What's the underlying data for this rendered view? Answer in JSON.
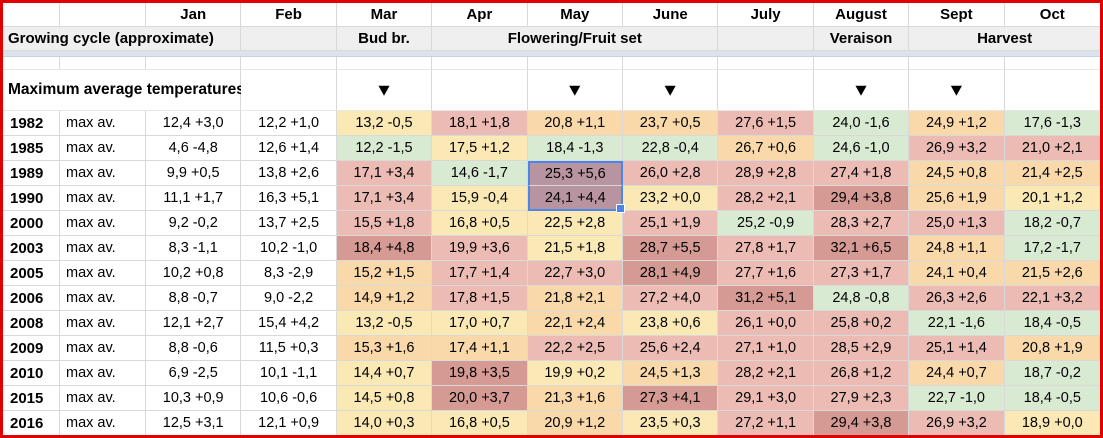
{
  "frame": {
    "border_color": "#e00000"
  },
  "months": [
    "Jan",
    "Feb",
    "Mar",
    "Apr",
    "May",
    "June",
    "July",
    "August",
    "Sept",
    "Oct"
  ],
  "growing_cycle": {
    "cells": [
      {
        "label": "Growing cycle (approximate)",
        "span": 3,
        "align": "left",
        "name": "growing-cycle-label"
      },
      {
        "label": "",
        "span": 1,
        "name": "cycle-feb-empty"
      },
      {
        "label": "Bud br.",
        "span": 1,
        "name": "stage-bud-break"
      },
      {
        "label": "Flowering/Fruit set",
        "span": 3,
        "name": "stage-flowering-fruit-set"
      },
      {
        "label": "",
        "span": 1,
        "name": "cycle-july-empty"
      },
      {
        "label": "Veraison",
        "span": 1,
        "name": "stage-veraison"
      },
      {
        "label": "Harvest",
        "span": 2,
        "name": "stage-harvest"
      }
    ]
  },
  "section_title": "Maximum average temperatures",
  "markers": {
    "glyph": "▼",
    "columns": [
      "Mar",
      "May",
      "June",
      "August",
      "Sept"
    ]
  },
  "palette": {
    "header_gray": "#efefef",
    "green": "#d9ead3",
    "yellow": "#fbe9b5",
    "orange": "#f9d9a9",
    "pink": "#ecbcb4",
    "dark_red": "#d49a93",
    "selection_blue": "#4a86e8"
  },
  "selection": {
    "column": "May",
    "rows": [
      "1989",
      "1990"
    ]
  },
  "rows": [
    {
      "year": "1982",
      "label": "max av.",
      "values": [
        "12,4 +3,0",
        "12,2 +1,0",
        "13,2 -0,5",
        "18,1 +1,8",
        "20,8 +1,1",
        "23,7 +0,5",
        "27,6 +1,5",
        "24,0 -1,6",
        "24,9 +1,2",
        "17,6 -1,3"
      ],
      "colors": [
        "w",
        "w",
        "y",
        "p",
        "o",
        "o",
        "p",
        "g",
        "o",
        "g"
      ]
    },
    {
      "year": "1985",
      "label": "max av.",
      "values": [
        "4,6 -4,8",
        "12,6 +1,4",
        "12,2 -1,5",
        "17,5 +1,2",
        "18,4 -1,3",
        "22,8 -0,4",
        "26,7 +0,6",
        "24,6 -1,0",
        "26,9 +3,2",
        "21,0 +2,1"
      ],
      "colors": [
        "w",
        "w",
        "g",
        "y",
        "g",
        "g",
        "o",
        "g",
        "p",
        "p"
      ]
    },
    {
      "year": "1989",
      "label": "max av.",
      "values": [
        "9,9 +0,5",
        "13,8 +2,6",
        "17,1 +3,4",
        "14,6 -1,7",
        "25,3 +5,6",
        "26,0 +2,8",
        "28,9 +2,8",
        "27,4 +1,8",
        "24,5 +0,8",
        "21,4 +2,5"
      ],
      "colors": [
        "w",
        "w",
        "p",
        "g",
        "r",
        "p",
        "p",
        "p",
        "o",
        "o"
      ]
    },
    {
      "year": "1990",
      "label": "max av.",
      "values": [
        "11,1 +1,7",
        "16,3 +5,1",
        "17,1 +3,4",
        "15,9 -0,4",
        "24,1 +4,4",
        "23,2 +0,0",
        "28,2 +2,1",
        "29,4 +3,8",
        "25,6 +1,9",
        "20,1 +1,2"
      ],
      "colors": [
        "w",
        "w",
        "p",
        "y",
        "r",
        "y",
        "p",
        "r",
        "o",
        "y"
      ]
    },
    {
      "year": "2000",
      "label": "max av.",
      "values": [
        "9,2 -0,2",
        "13,7 +2,5",
        "15,5 +1,8",
        "16,8 +0,5",
        "22,5 +2,8",
        "25,1 +1,9",
        "25,2 -0,9",
        "28,3 +2,7",
        "25,0 +1,3",
        "18,2 -0,7"
      ],
      "colors": [
        "w",
        "w",
        "p",
        "y",
        "y",
        "p",
        "g",
        "p",
        "p",
        "g"
      ]
    },
    {
      "year": "2003",
      "label": "max av.",
      "values": [
        "8,3 -1,1",
        "10,2 -1,0",
        "18,4 +4,8",
        "19,9 +3,6",
        "21,5 +1,8",
        "28,7 +5,5",
        "27,8 +1,7",
        "32,1 +6,5",
        "24,8 +1,1",
        "17,2 -1,7"
      ],
      "colors": [
        "w",
        "w",
        "r",
        "p",
        "y",
        "r",
        "p",
        "r",
        "o",
        "g"
      ]
    },
    {
      "year": "2005",
      "label": "max av.",
      "values": [
        "10,2 +0,8",
        "8,3 -2,9",
        "15,2 +1,5",
        "17,7 +1,4",
        "22,7 +3,0",
        "28,1 +4,9",
        "27,7 +1,6",
        "27,3 +1,7",
        "24,1 +0,4",
        "21,5 +2,6"
      ],
      "colors": [
        "w",
        "w",
        "o",
        "p",
        "p",
        "r",
        "p",
        "p",
        "o",
        "o"
      ]
    },
    {
      "year": "2006",
      "label": "max av.",
      "values": [
        "8,8 -0,7",
        "9,0 -2,2",
        "14,9 +1,2",
        "17,8 +1,5",
        "21,8 +2,1",
        "27,2 +4,0",
        "31,2 +5,1",
        "24,8 -0,8",
        "26,3 +2,6",
        "22,1 +3,2"
      ],
      "colors": [
        "w",
        "w",
        "o",
        "p",
        "o",
        "p",
        "r",
        "g",
        "p",
        "p"
      ]
    },
    {
      "year": "2008",
      "label": "max av.",
      "values": [
        "12,1 +2,7",
        "15,4 +4,2",
        "13,2 -0,5",
        "17,0 +0,7",
        "22,1 +2,4",
        "23,8 +0,6",
        "26,1 +0,0",
        "25,8 +0,2",
        "22,1 -1,6",
        "18,4 -0,5"
      ],
      "colors": [
        "w",
        "w",
        "y",
        "y",
        "o",
        "y",
        "p",
        "p",
        "g",
        "g"
      ]
    },
    {
      "year": "2009",
      "label": "max av.",
      "values": [
        "8,8 -0,6",
        "11,5 +0,3",
        "15,3 +1,6",
        "17,4 +1,1",
        "22,2 +2,5",
        "25,6 +2,4",
        "27,1 +1,0",
        "28,5 +2,9",
        "25,1 +1,4",
        "20,8 +1,9"
      ],
      "colors": [
        "w",
        "w",
        "o",
        "o",
        "p",
        "p",
        "p",
        "p",
        "p",
        "o"
      ]
    },
    {
      "year": "2010",
      "label": "max av.",
      "values": [
        "6,9 -2,5",
        "10,1 -1,1",
        "14,4 +0,7",
        "19,8 +3,5",
        "19,9 +0,2",
        "24,5 +1,3",
        "28,2 +2,1",
        "26,8 +1,2",
        "24,4 +0,7",
        "18,7 -0,2"
      ],
      "colors": [
        "w",
        "w",
        "y",
        "r",
        "y",
        "o",
        "p",
        "p",
        "o",
        "g"
      ]
    },
    {
      "year": "2015",
      "label": "max av.",
      "values": [
        "10,3 +0,9",
        "10,6 -0,6",
        "14,5 +0,8",
        "20,0 +3,7",
        "21,3 +1,6",
        "27,3 +4,1",
        "29,1 +3,0",
        "27,9 +2,3",
        "22,7 -1,0",
        "18,4 -0,5"
      ],
      "colors": [
        "w",
        "w",
        "y",
        "r",
        "o",
        "r",
        "p",
        "p",
        "g",
        "g"
      ]
    },
    {
      "year": "2016",
      "label": "max av.",
      "values": [
        "12,5 +3,1",
        "12,1 +0,9",
        "14,0 +0,3",
        "16,8 +0,5",
        "20,9 +1,2",
        "23,5 +0,3",
        "27,2 +1,1",
        "29,4 +3,8",
        "26,9 +3,2",
        "18,9 +0,0"
      ],
      "colors": [
        "w",
        "w",
        "y",
        "y",
        "o",
        "y",
        "p",
        "r",
        "p",
        "y"
      ]
    }
  ]
}
